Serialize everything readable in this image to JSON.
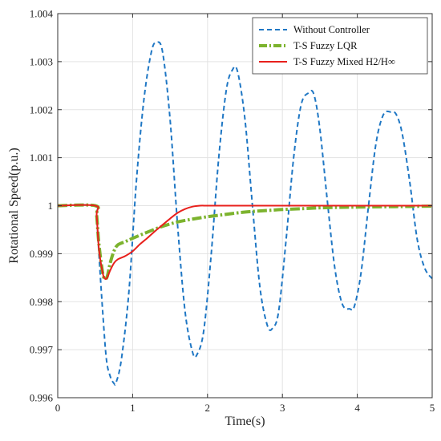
{
  "chart_data": {
    "type": "line",
    "xlabel": "Time(s)",
    "ylabel": "Rotational Speed(p.u.)",
    "xlim": [
      0,
      5
    ],
    "ylim": [
      0.996,
      1.004
    ],
    "xticks": [
      0,
      1,
      2,
      3,
      4,
      5
    ],
    "xtick_labels": [
      "0",
      "1",
      "2",
      "3",
      "4",
      "5"
    ],
    "yticks": [
      0.996,
      0.997,
      0.998,
      0.999,
      1.0,
      1.001,
      1.002,
      1.003,
      1.004
    ],
    "ytick_labels": [
      "0.996",
      "0.997",
      "0.998",
      "0.999",
      "1",
      "1.001",
      "1.002",
      "1.003",
      "1.004"
    ],
    "grid": true,
    "legend_position": "top-right",
    "series": [
      {
        "name": "Without Controller",
        "color": "#1f77c4",
        "style": "dashed",
        "x": [
          0,
          0.5,
          0.52,
          0.55,
          0.6,
          0.65,
          0.7,
          0.75,
          0.78,
          0.85,
          0.95,
          1.05,
          1.15,
          1.25,
          1.32,
          1.4,
          1.5,
          1.6,
          1.7,
          1.8,
          1.86,
          1.95,
          2.05,
          2.15,
          2.25,
          2.33,
          2.4,
          2.5,
          2.6,
          2.7,
          2.8,
          2.87,
          2.95,
          3.05,
          3.15,
          3.25,
          3.35,
          3.42,
          3.5,
          3.6,
          3.7,
          3.8,
          3.9,
          3.96,
          4.05,
          4.15,
          4.25,
          4.35,
          4.45,
          4.52,
          4.6,
          4.7,
          4.8,
          4.9,
          5.0
        ],
        "y": [
          1.0,
          1.0,
          0.9998,
          0.999,
          0.9978,
          0.9968,
          0.99645,
          0.9963,
          0.99632,
          0.9968,
          0.9982,
          1.0005,
          1.0022,
          1.0032,
          1.0034,
          1.0032,
          1.0018,
          0.9996,
          0.9978,
          0.99695,
          0.9969,
          0.9974,
          0.999,
          1.001,
          1.0024,
          1.00282,
          1.0028,
          1.0018,
          1.0,
          0.9983,
          0.9975,
          0.99745,
          0.9978,
          0.9993,
          1.001,
          1.0021,
          1.00235,
          1.00232,
          1.0016,
          1.0001,
          0.9987,
          0.99795,
          0.99785,
          0.9979,
          0.9986,
          1.0,
          1.0013,
          1.0019,
          1.00195,
          1.0019,
          1.0015,
          1.0005,
          0.9993,
          0.9987,
          0.99848
        ]
      },
      {
        "name": "T-S Fuzzy LQR",
        "color": "#7cb32e",
        "style": "dashdot",
        "x": [
          0,
          0.5,
          0.52,
          0.55,
          0.6,
          0.63,
          0.66,
          0.7,
          0.75,
          0.8,
          0.9,
          1.0,
          1.2,
          1.4,
          1.6,
          1.8,
          2.0,
          2.2,
          2.4,
          2.6,
          2.8,
          3.0,
          3.3,
          3.6,
          4.0,
          4.5,
          5.0
        ],
        "y": [
          1.0,
          1.0,
          0.9998,
          0.9992,
          0.9986,
          0.99848,
          0.99852,
          0.9988,
          0.99905,
          0.99918,
          0.99925,
          0.99932,
          0.99945,
          0.99957,
          0.99966,
          0.99972,
          0.99977,
          0.99981,
          0.99985,
          0.99988,
          0.9999,
          0.99992,
          0.99994,
          0.99996,
          0.99997,
          0.99998,
          0.99999
        ]
      },
      {
        "name": "T-S Fuzzy Mixed H2/H∞",
        "color": "#e8201c",
        "style": "solid",
        "x": [
          0,
          0.5,
          0.52,
          0.55,
          0.6,
          0.63,
          0.66,
          0.7,
          0.75,
          0.8,
          0.9,
          1.0,
          1.1,
          1.2,
          1.3,
          1.4,
          1.5,
          1.6,
          1.7,
          1.8,
          1.9,
          2.0,
          2.2,
          2.5,
          3.0,
          4.0,
          5.0
        ],
        "y": [
          1.0,
          1.0,
          0.9998,
          0.9991,
          0.9986,
          0.99848,
          0.9985,
          0.99865,
          0.9988,
          0.99888,
          0.99895,
          0.99905,
          0.9992,
          0.99933,
          0.99947,
          0.9996,
          0.99973,
          0.99985,
          0.99993,
          0.99998,
          1.0,
          1.0,
          1.0,
          1.0,
          1.0,
          1.0,
          1.0
        ]
      }
    ]
  }
}
